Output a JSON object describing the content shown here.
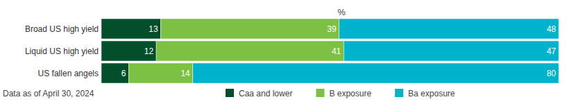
{
  "chart_data": {
    "type": "bar",
    "orientation": "horizontal",
    "stacked": true,
    "data_labels": true,
    "tick_labels": "y",
    "grid": false,
    "title": "%",
    "annotations": [
      "Data as of April 30, 2024"
    ],
    "categories": [
      "Broad US high yield",
      "Liquid US high yield",
      "US fallen angels"
    ],
    "xlim": [
      0,
      100
    ],
    "legend": "bottom",
    "series": [
      {
        "name": "Caa and lower",
        "color": "#034e2b",
        "values": [
          13,
          12,
          6
        ]
      },
      {
        "name": "B exposure",
        "color": "#7cc143",
        "values": [
          39,
          41,
          14
        ]
      },
      {
        "name": "Ba exposure",
        "color": "#00b3cb",
        "values": [
          48,
          47,
          80
        ]
      }
    ]
  }
}
